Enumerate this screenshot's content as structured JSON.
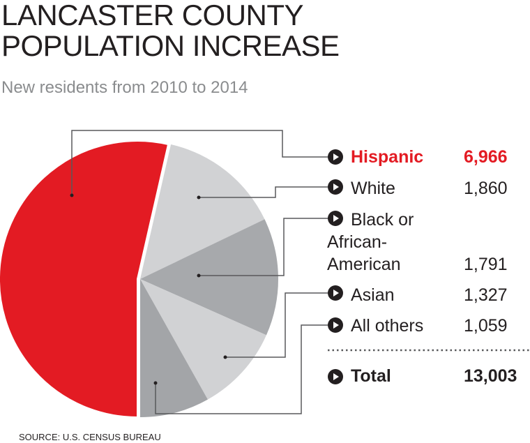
{
  "title_line1": "LANCASTER COUNTY",
  "title_line2": "POPULATION INCREASE",
  "subtitle": "New residents from 2010 to 2014",
  "source": "SOURCE: U.S. CENSUS BUREAU",
  "chart_data": {
    "type": "pie",
    "title": "LANCASTER COUNTY POPULATION INCREASE",
    "subtitle": "New residents from 2010 to 2014",
    "slices": [
      {
        "label": "Hispanic",
        "value": 6966,
        "display": "6,966",
        "color": "#e31b23"
      },
      {
        "label": "White",
        "value": 1860,
        "display": "1,860",
        "color": "#d1d2d4"
      },
      {
        "label": "Black or African-American",
        "value": 1791,
        "display": "1,791",
        "color": "#a7a9ac"
      },
      {
        "label": "Asian",
        "value": 1327,
        "display": "1,327",
        "color": "#d1d2d4"
      },
      {
        "label": "All others",
        "value": 1059,
        "display": "1,059",
        "color": "#a3a5a8"
      }
    ],
    "total": {
      "label": "Total",
      "value": 13003,
      "display": "13,003"
    },
    "legend_lines": {
      "black_1": "Black or",
      "black_2": "African-",
      "black_3": "American"
    }
  }
}
